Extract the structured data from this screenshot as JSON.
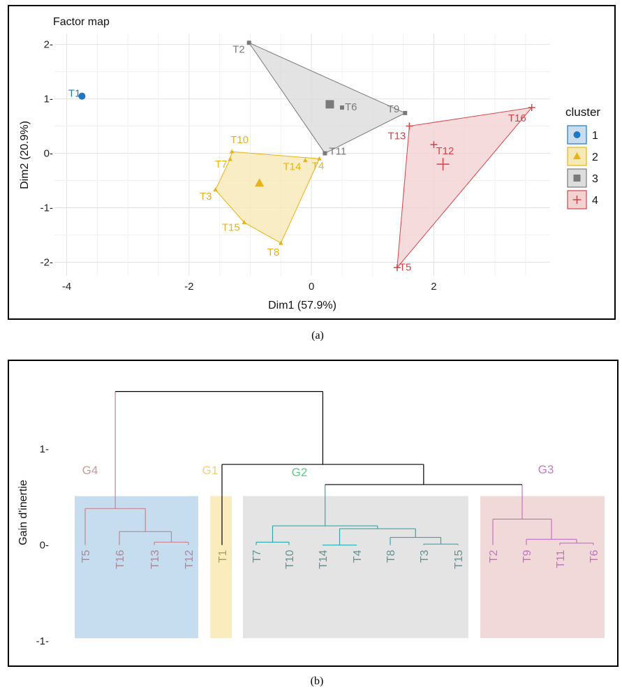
{
  "captions": {
    "a": "(a)",
    "b": "(b)"
  },
  "chart_data": [
    {
      "type": "scatter",
      "title": "Factor map",
      "xlabel": "Dim1 (57.9%)",
      "ylabel": "Dim2 (20.9%)",
      "xlim": [
        -4.2,
        3.9
      ],
      "ylim": [
        -2.25,
        2.2
      ],
      "xticks": [
        -4,
        -2,
        0,
        2
      ],
      "yticks": [
        -2,
        -1,
        0,
        1,
        2
      ],
      "xtick_labels": [
        "-4",
        "-2",
        "0",
        "2"
      ],
      "ytick_labels": [
        "-2-",
        "-1-",
        "0-",
        "1-",
        "2-"
      ],
      "grid": true,
      "legend": {
        "title": "cluster",
        "placement": "right",
        "items": [
          {
            "label": "1",
            "color": "#1f77c4",
            "fill": "#c9ddee",
            "marker": "circle"
          },
          {
            "label": "2",
            "color": "#e6b416",
            "fill": "#f7e9b6",
            "marker": "triangle"
          },
          {
            "label": "3",
            "color": "#7a7a7a",
            "fill": "#dcdcdc",
            "marker": "square"
          },
          {
            "label": "4",
            "color": "#d0444a",
            "fill": "#f3d2d2",
            "marker": "plus"
          }
        ]
      },
      "clusters": [
        {
          "name": "1",
          "color": "#1f77c4",
          "fill": "#c9ddee",
          "marker": "circle",
          "hull": [],
          "centroid": [
            -3.75,
            1.05
          ],
          "points": [
            {
              "label": "T1",
              "x": -3.75,
              "y": 1.05
            }
          ]
        },
        {
          "name": "2",
          "color": "#e6b416",
          "fill": "#f7e9b6",
          "marker": "triangle",
          "hull": [
            "T10",
            "T4",
            "T8",
            "T15",
            "T3",
            "T7"
          ],
          "centroid": [
            -0.85,
            -0.55
          ],
          "points": [
            {
              "label": "T10",
              "x": -1.3,
              "y": 0.03
            },
            {
              "label": "T7",
              "x": -1.33,
              "y": -0.11
            },
            {
              "label": "T3",
              "x": -1.57,
              "y": -0.67
            },
            {
              "label": "T15",
              "x": -1.1,
              "y": -1.27
            },
            {
              "label": "T8",
              "x": -0.5,
              "y": -1.65
            },
            {
              "label": "T14",
              "x": -0.1,
              "y": -0.13
            },
            {
              "label": "T4",
              "x": 0.13,
              "y": -0.1
            }
          ]
        },
        {
          "name": "3",
          "color": "#7a7a7a",
          "fill": "#dcdcdc",
          "marker": "square",
          "hull": [
            "T2",
            "T9",
            "T11"
          ],
          "centroid": [
            0.3,
            0.9
          ],
          "points": [
            {
              "label": "T2",
              "x": -1.02,
              "y": 2.03
            },
            {
              "label": "T6",
              "x": 0.5,
              "y": 0.84
            },
            {
              "label": "T9",
              "x": 1.53,
              "y": 0.74
            },
            {
              "label": "T11",
              "x": 0.22,
              "y": 0.0
            }
          ]
        },
        {
          "name": "4",
          "color": "#d0444a",
          "fill": "#f3d2d2",
          "marker": "plus",
          "hull": [
            "T13",
            "T16",
            "T5"
          ],
          "centroid": [
            2.15,
            -0.2
          ],
          "points": [
            {
              "label": "T16",
              "x": 3.6,
              "y": 0.84
            },
            {
              "label": "T13",
              "x": 1.6,
              "y": 0.5
            },
            {
              "label": "T12",
              "x": 2.0,
              "y": 0.16
            },
            {
              "label": "T5",
              "x": 1.4,
              "y": -2.1
            }
          ]
        }
      ]
    },
    {
      "type": "dendrogram",
      "ylabel": "Gain d'inertie",
      "ylim": [
        -1.0,
        1.75
      ],
      "yticks": [
        -1,
        0,
        1
      ],
      "ytick_labels": [
        "-1-",
        "0-",
        "1-"
      ],
      "leaves": [
        "T5",
        "T16",
        "T13",
        "T12",
        "T1",
        "T7",
        "T10",
        "T14",
        "T4",
        "T8",
        "T3",
        "T15",
        "T2",
        "T9",
        "T11",
        "T6"
      ],
      "leaf_colors": [
        "#a68a9b",
        "#a68a9b",
        "#a68a9b",
        "#a68a9b",
        "#a7a34a",
        "#6b8f8f",
        "#6b8f8f",
        "#6b8f8f",
        "#6b8f8f",
        "#6b8f8f",
        "#6b8f8f",
        "#6b8f8f",
        "#c272c4",
        "#c272c4",
        "#c272c4",
        "#c272c4"
      ],
      "groups": [
        {
          "label": "G4",
          "leaves": [
            "T5",
            "T16",
            "T13",
            "T12"
          ],
          "fill": "#c6dcef",
          "line_color": "#c4858b",
          "label_color": "#c79c97"
        },
        {
          "label": "G1",
          "leaves": [
            "T1"
          ],
          "fill": "#faecbd",
          "line_color": "#a8a830",
          "label_color": "#ecd27a"
        },
        {
          "label": "G2",
          "leaves": [
            "T7",
            "T10",
            "T14",
            "T4",
            "T8",
            "T3",
            "T15"
          ],
          "fill": "#e4e4e4",
          "line_color": "#2fa9ae",
          "label_color": "#5dc98a"
        },
        {
          "label": "G3",
          "leaves": [
            "T2",
            "T9",
            "T11",
            "T6"
          ],
          "fill": "#f1d9d9",
          "line_color": "#c470c8",
          "label_color": "#c27ac7"
        }
      ],
      "merges": [
        {
          "children": [
            "T13",
            "T12"
          ],
          "height": 0.03
        },
        {
          "children": [
            "T16",
            "T13-T12"
          ],
          "height": 0.14
        },
        {
          "children": [
            "T5",
            "T16-T13-T12"
          ],
          "height": 0.38
        },
        {
          "children": [
            "T7",
            "T10"
          ],
          "height": 0.03
        },
        {
          "children": [
            "T14",
            "T4"
          ],
          "height": 0.0
        },
        {
          "children": [
            "T3",
            "T15"
          ],
          "height": 0.01
        },
        {
          "children": [
            "T8",
            "T3-T15"
          ],
          "height": 0.08
        },
        {
          "children": [
            "T14-T4",
            "T8-T3-T15"
          ],
          "height": 0.17
        },
        {
          "children": [
            "T7-T10",
            "T14-T4-T8-T3-T15"
          ],
          "height": 0.2
        },
        {
          "children": [
            "T11",
            "T6"
          ],
          "height": 0.02
        },
        {
          "children": [
            "T9",
            "T11-T6"
          ],
          "height": 0.06
        },
        {
          "children": [
            "T2",
            "T9-T11-T6"
          ],
          "height": 0.27
        },
        {
          "children": [
            "G2",
            "G3"
          ],
          "height": 0.63
        },
        {
          "children": [
            "G1",
            "G2-G3"
          ],
          "height": 0.84
        },
        {
          "children": [
            "G4",
            "G1-G2-G3"
          ],
          "height": 1.6
        }
      ]
    }
  ]
}
